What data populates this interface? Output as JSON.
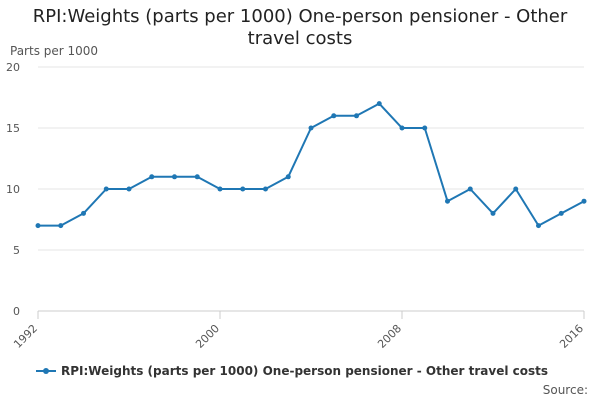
{
  "chart_data": {
    "type": "line",
    "title": "RPI:Weights (parts per 1000) One-person pensioner - Other travel costs",
    "title_lines": [
      "RPI:Weights (parts per 1000) One-person pensioner - Other",
      "travel costs"
    ],
    "ylabel": "Parts per 1000",
    "xlabel": "",
    "ylim": [
      0,
      20
    ],
    "yticks": [
      0,
      5,
      10,
      15,
      20
    ],
    "xlim": [
      1992,
      2016
    ],
    "xticks": [
      1992,
      2000,
      2008,
      2016
    ],
    "grid": true,
    "legend_position": "bottom",
    "series": [
      {
        "name": "RPI:Weights (parts per 1000) One-person pensioner - Other travel costs",
        "color": "#1f77b4",
        "x": [
          1992,
          1993,
          1994,
          1995,
          1996,
          1997,
          1998,
          1999,
          2000,
          2001,
          2002,
          2003,
          2004,
          2005,
          2006,
          2007,
          2008,
          2009,
          2010,
          2011,
          2012,
          2013,
          2014,
          2015,
          2016
        ],
        "values": [
          7,
          7,
          8,
          10,
          10,
          11,
          11,
          11,
          10,
          10,
          10,
          11,
          15,
          16,
          16,
          17,
          15,
          15,
          9,
          10,
          8,
          10,
          7,
          8,
          9
        ]
      }
    ]
  },
  "legend": {
    "label": "RPI:Weights (parts per 1000) One-person pensioner - Other travel costs"
  },
  "source": {
    "label": "Source:"
  },
  "colors": {
    "series": "#1f77b4",
    "grid": "#e6e6e6",
    "axis": "#cccccc"
  }
}
